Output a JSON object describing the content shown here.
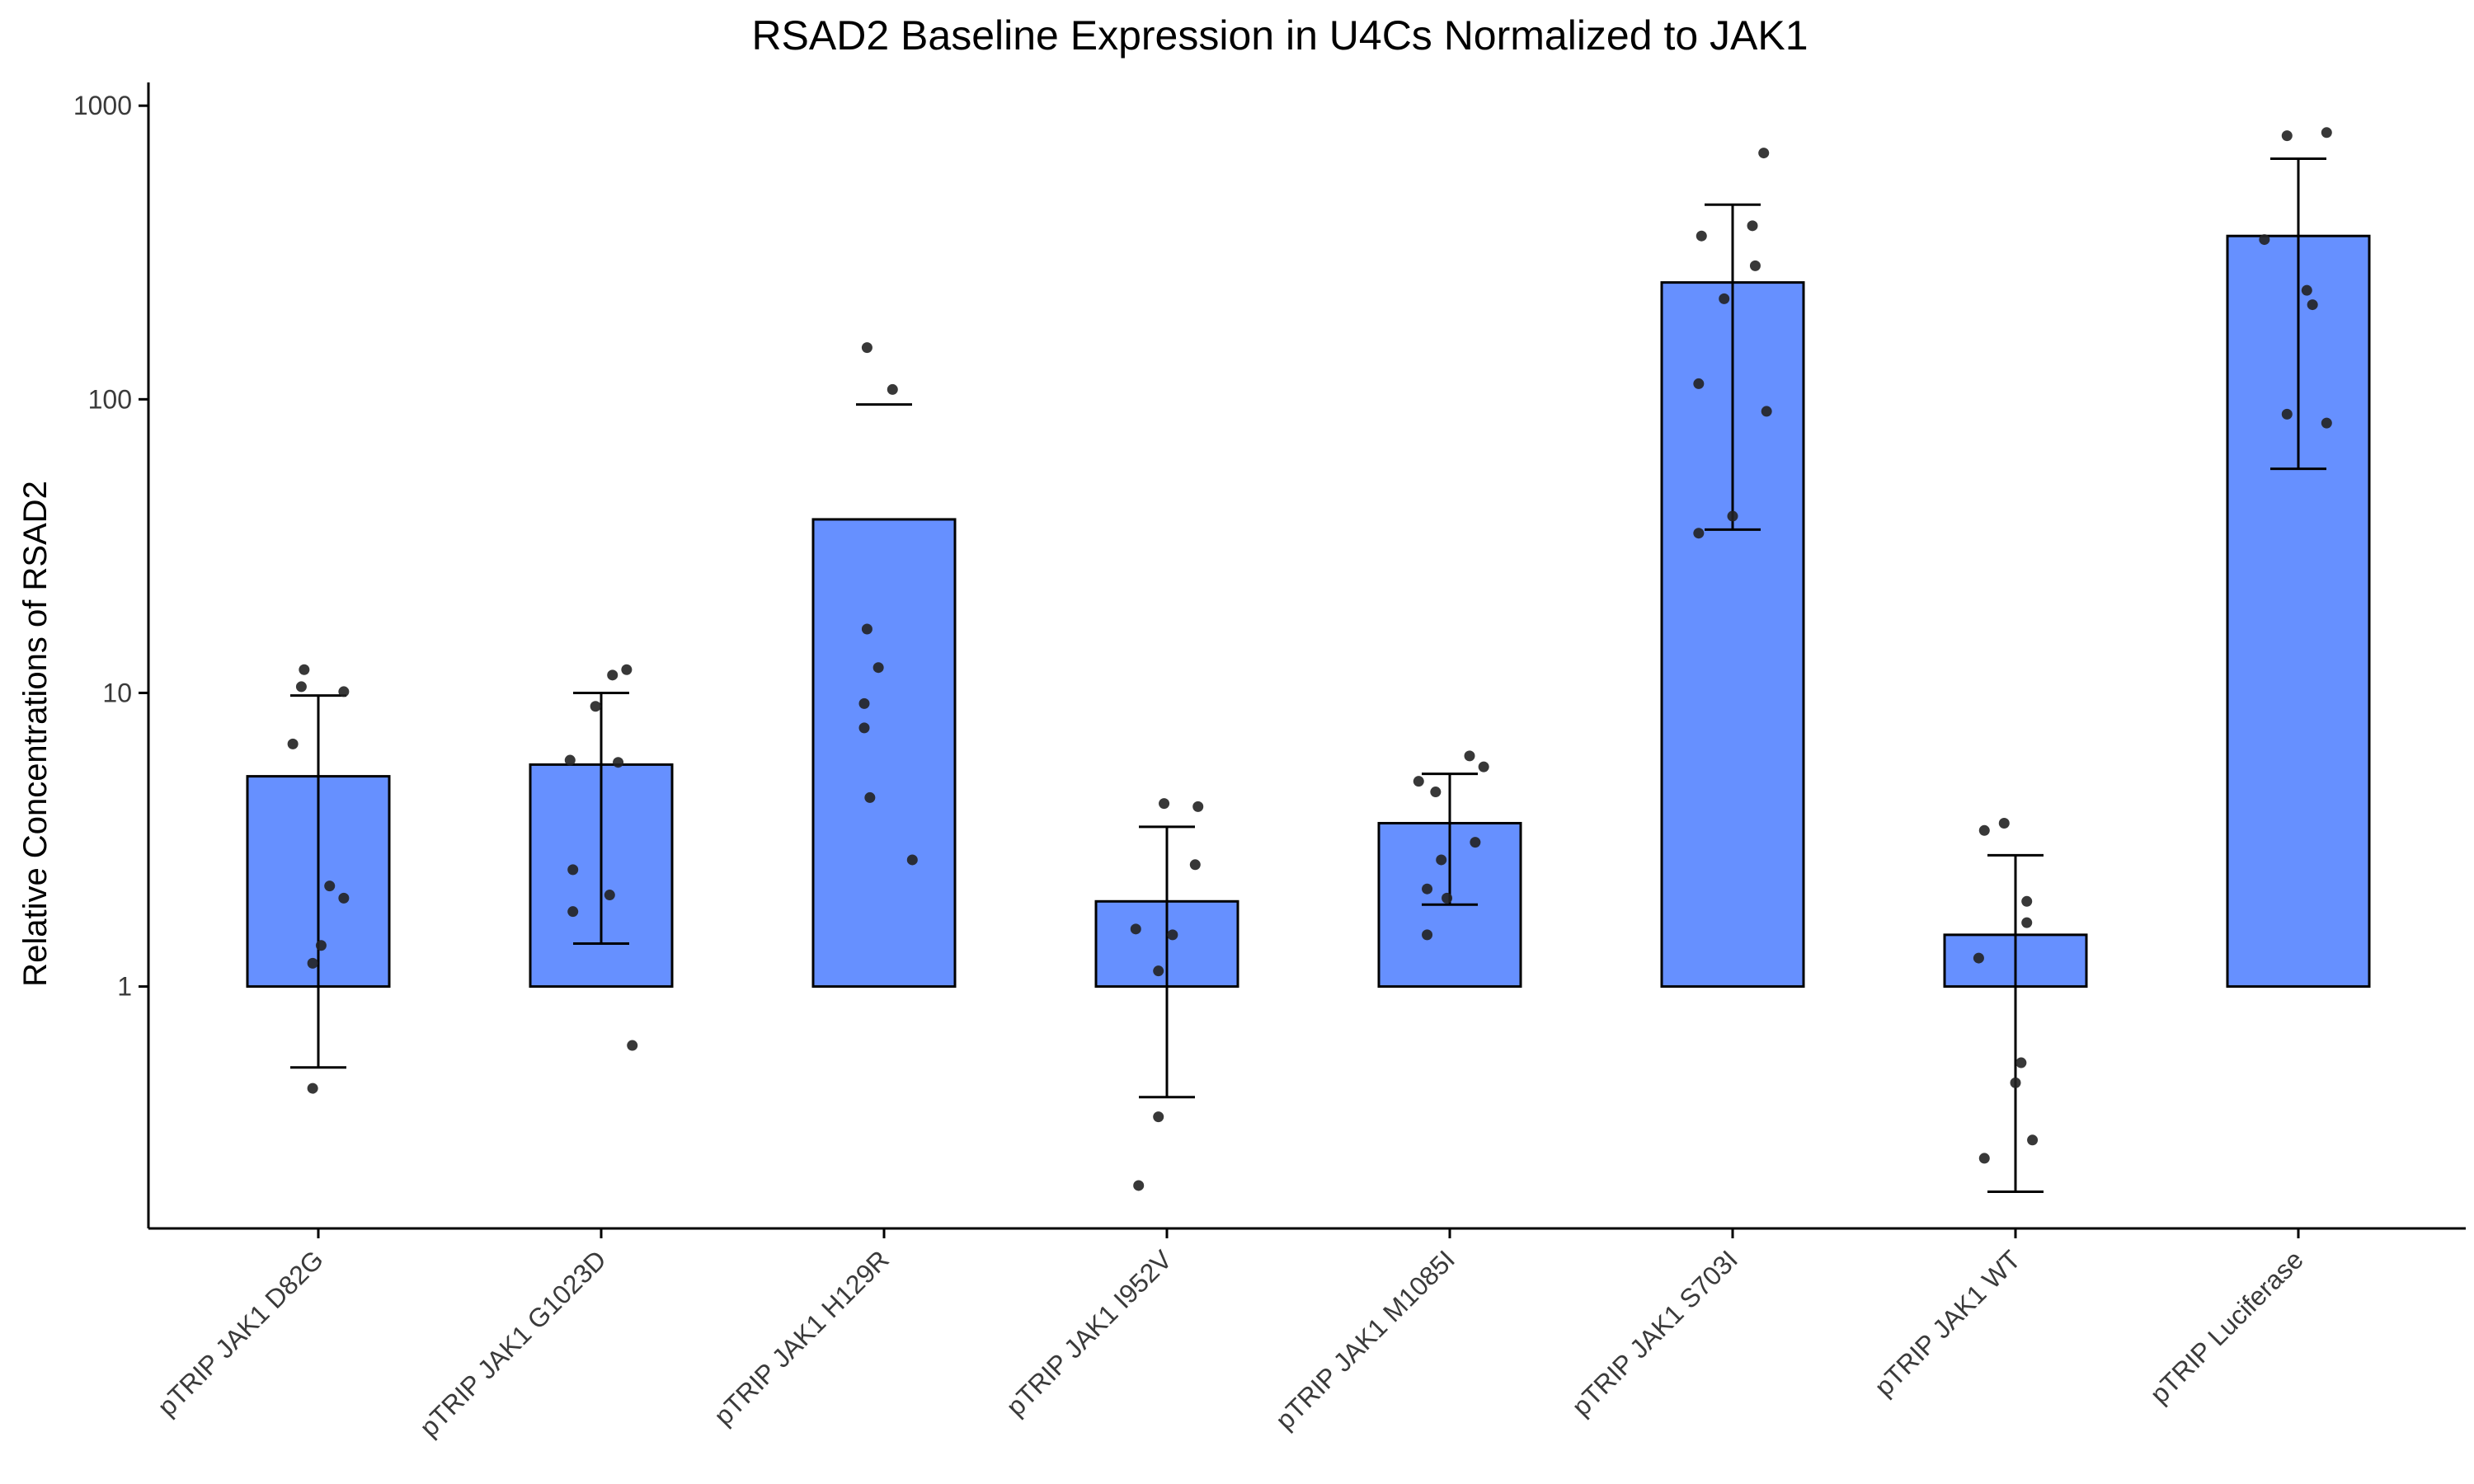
{
  "chart_data": {
    "type": "bar",
    "title": "RSAD2 Baseline Expression in U4Cs Normalized to JAK1",
    "xlabel": "",
    "ylabel": "Relative Concentrations of RSAD2",
    "y_scale": "log10",
    "ylim": [
      0.15,
      1200
    ],
    "y_ticks": [
      1,
      10,
      100,
      1000
    ],
    "y_tick_labels": [
      "1",
      "10",
      "100",
      "1000"
    ],
    "bar_baseline": 1,
    "grid": false,
    "legend": "none",
    "bar_color": "#6690ff",
    "categories": [
      "pTRIP JAK1 D82G",
      "pTRIP JAK1 G1023D",
      "pTRIP JAK1 H129R",
      "pTRIP JAK1 I952V",
      "pTRIP JAK1 M1085I",
      "pTRIP JAK1 S703I",
      "pTRIP JAK1 WT",
      "pTRIP Luciferase"
    ],
    "values": [
      5.2,
      5.7,
      39,
      1.95,
      3.6,
      250,
      1.5,
      360
    ],
    "error_bars": [
      {
        "low": 0.53,
        "high": 9.8
      },
      {
        "low": 1.4,
        "high": 10
      },
      {
        "low": null,
        "high": 96
      },
      {
        "low": 0.42,
        "high": 3.5
      },
      {
        "low": 1.9,
        "high": 5.3
      },
      {
        "low": 36,
        "high": 460
      },
      {
        "low": 0.2,
        "high": 2.8
      },
      {
        "low": 58,
        "high": 660
      }
    ],
    "points": [
      [
        {
          "dx": -0.05,
          "y": 12
        },
        {
          "dx": -0.06,
          "y": 10.5
        },
        {
          "dx": -0.09,
          "y": 6.7
        },
        {
          "dx": 0.09,
          "y": 10.1
        },
        {
          "dx": 0.04,
          "y": 2.2
        },
        {
          "dx": 0.09,
          "y": 2.0
        },
        {
          "dx": 0.01,
          "y": 1.38
        },
        {
          "dx": -0.02,
          "y": 1.2
        },
        {
          "dx": -0.02,
          "y": 0.45
        }
      ],
      [
        {
          "dx": 0.09,
          "y": 12
        },
        {
          "dx": 0.04,
          "y": 11.5
        },
        {
          "dx": -0.02,
          "y": 9.0
        },
        {
          "dx": -0.11,
          "y": 5.9
        },
        {
          "dx": 0.06,
          "y": 5.8
        },
        {
          "dx": -0.1,
          "y": 2.5
        },
        {
          "dx": 0.03,
          "y": 2.05
        },
        {
          "dx": -0.1,
          "y": 1.8
        },
        {
          "dx": 0.11,
          "y": 0.63
        }
      ],
      [
        {
          "dx": -0.06,
          "y": 150
        },
        {
          "dx": 0.03,
          "y": 108
        },
        {
          "dx": -0.06,
          "y": 16.5
        },
        {
          "dx": -0.02,
          "y": 12.2
        },
        {
          "dx": -0.07,
          "y": 9.2
        },
        {
          "dx": -0.07,
          "y": 7.6
        },
        {
          "dx": -0.05,
          "y": 4.4
        },
        {
          "dx": 0.1,
          "y": 2.7
        }
      ],
      [
        {
          "dx": -0.01,
          "y": 4.2
        },
        {
          "dx": 0.11,
          "y": 4.1
        },
        {
          "dx": 0.1,
          "y": 2.6
        },
        {
          "dx": -0.11,
          "y": 1.57
        },
        {
          "dx": 0.02,
          "y": 1.5
        },
        {
          "dx": -0.03,
          "y": 1.13
        },
        {
          "dx": -0.03,
          "y": 0.36
        },
        {
          "dx": -0.1,
          "y": 0.21
        }
      ],
      [
        {
          "dx": 0.07,
          "y": 6.1
        },
        {
          "dx": 0.12,
          "y": 5.6
        },
        {
          "dx": -0.11,
          "y": 5.0
        },
        {
          "dx": -0.05,
          "y": 4.6
        },
        {
          "dx": 0.09,
          "y": 3.1
        },
        {
          "dx": -0.03,
          "y": 2.7
        },
        {
          "dx": -0.08,
          "y": 2.15
        },
        {
          "dx": -0.01,
          "y": 2.0
        },
        {
          "dx": -0.08,
          "y": 1.5
        }
      ],
      [
        {
          "dx": 0.11,
          "y": 690
        },
        {
          "dx": 0.07,
          "y": 390
        },
        {
          "dx": -0.11,
          "y": 360
        },
        {
          "dx": 0.08,
          "y": 285
        },
        {
          "dx": -0.03,
          "y": 220
        },
        {
          "dx": -0.12,
          "y": 113
        },
        {
          "dx": 0.12,
          "y": 91
        },
        {
          "dx": 0.0,
          "y": 40
        },
        {
          "dx": -0.12,
          "y": 35
        }
      ],
      [
        {
          "dx": -0.11,
          "y": 3.4
        },
        {
          "dx": -0.04,
          "y": 3.6
        },
        {
          "dx": 0.04,
          "y": 1.95
        },
        {
          "dx": 0.04,
          "y": 1.65
        },
        {
          "dx": -0.13,
          "y": 1.25
        },
        {
          "dx": 0.02,
          "y": 0.55
        },
        {
          "dx": 0.0,
          "y": 0.47
        },
        {
          "dx": 0.06,
          "y": 0.3
        },
        {
          "dx": -0.11,
          "y": 0.26
        }
      ],
      [
        {
          "dx": 0.1,
          "y": 810
        },
        {
          "dx": -0.04,
          "y": 790
        },
        {
          "dx": -0.12,
          "y": 350
        },
        {
          "dx": 0.03,
          "y": 235
        },
        {
          "dx": 0.05,
          "y": 210
        },
        {
          "dx": -0.04,
          "y": 89
        },
        {
          "dx": 0.1,
          "y": 83
        }
      ]
    ]
  }
}
